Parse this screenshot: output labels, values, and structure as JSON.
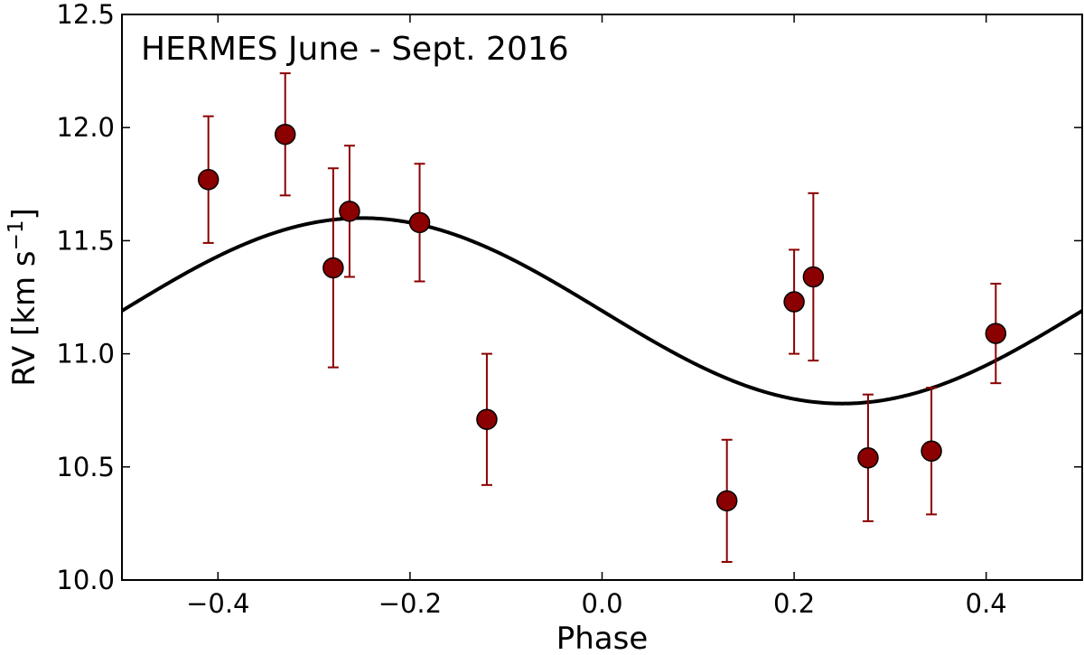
{
  "chart_data": {
    "type": "scatter",
    "title": "",
    "annotation": "HERMES June - Sept. 2016",
    "xlabel": "Phase",
    "ylabel": {
      "prefix": "RV [km s",
      "superscript": "−1",
      "suffix": "]"
    },
    "xlim": [
      -0.5,
      0.5
    ],
    "ylim": [
      10.0,
      12.5
    ],
    "xticks": [
      -0.4,
      -0.2,
      0.0,
      0.2,
      0.4
    ],
    "xtick_labels": [
      "−0.4",
      "−0.2",
      "0.0",
      "0.2",
      "0.4"
    ],
    "yticks": [
      10.0,
      10.5,
      11.0,
      11.5,
      12.0,
      12.5
    ],
    "ytick_labels": [
      "10.0",
      "10.5",
      "11.0",
      "11.5",
      "12.0",
      "12.5"
    ],
    "grid": false,
    "legend": "none",
    "colors": {
      "points": "#8b0000",
      "errorbars": "#8b0000",
      "model": "#000000"
    },
    "points": [
      {
        "x": -0.41,
        "y": 11.77,
        "yerr": 0.28
      },
      {
        "x": -0.33,
        "y": 11.97,
        "yerr": 0.27
      },
      {
        "x": -0.28,
        "y": 11.38,
        "yerr": 0.44
      },
      {
        "x": -0.263,
        "y": 11.63,
        "yerr": 0.29
      },
      {
        "x": -0.19,
        "y": 11.58,
        "yerr": 0.26
      },
      {
        "x": -0.12,
        "y": 10.71,
        "yerr": 0.29
      },
      {
        "x": 0.13,
        "y": 10.35,
        "yerr": 0.27
      },
      {
        "x": 0.2,
        "y": 11.23,
        "yerr": 0.23
      },
      {
        "x": 0.22,
        "y": 11.34,
        "yerr": 0.37
      },
      {
        "x": 0.277,
        "y": 10.54,
        "yerr": 0.28
      },
      {
        "x": 0.343,
        "y": 10.57,
        "yerr": 0.28
      },
      {
        "x": 0.41,
        "y": 11.09,
        "yerr": 0.22
      }
    ],
    "model_curve": {
      "type": "sinusoid",
      "mean": 11.19,
      "amplitude": 0.41,
      "phase_of_max": -0.25,
      "period": 1.0
    }
  }
}
